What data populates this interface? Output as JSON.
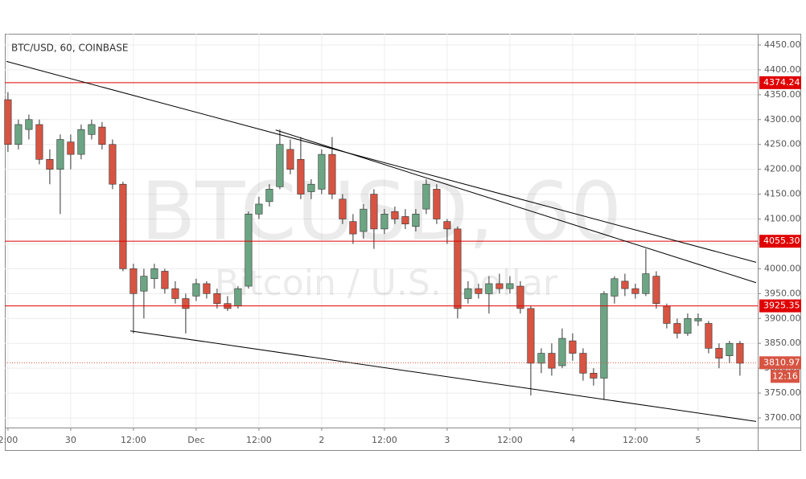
{
  "chart_data": {
    "type": "candlestick",
    "title": "BTC/USD, 60, COINBASE",
    "watermark": "BTCUSD, 60",
    "watermark_subtitle": "Bitcoin / U.S. Dollar",
    "x": [
      0,
      2,
      4,
      6,
      8,
      10,
      12,
      14,
      16,
      18,
      20,
      22,
      24,
      26,
      28,
      30,
      32,
      34,
      36,
      38,
      40,
      42,
      44,
      46,
      48,
      50,
      52,
      54,
      56,
      58,
      60,
      62,
      64,
      66,
      68,
      70,
      72,
      74,
      76,
      78,
      80,
      82,
      84,
      86,
      88,
      90,
      92,
      94,
      96,
      98,
      100,
      102,
      104,
      106,
      108,
      110,
      112,
      114,
      116,
      118,
      120,
      122,
      124,
      126,
      128,
      130,
      132,
      134,
      136,
      138,
      140
    ],
    "open": [
      4340,
      4250,
      4280,
      4290,
      4220,
      4200,
      4255,
      4230,
      4270,
      4285,
      4250,
      4170,
      4000,
      3955,
      3980,
      3995,
      3960,
      3940,
      3945,
      3970,
      3950,
      3930,
      3925,
      3965,
      4110,
      4135,
      4165,
      4240,
      4220,
      4155,
      4160,
      4230,
      4140,
      4095,
      4075,
      4150,
      4080,
      4115,
      4105,
      4085,
      4120,
      4160,
      4095,
      4080,
      3940,
      3960,
      3950,
      3970,
      3960,
      3965,
      3920,
      3810,
      3830,
      3805,
      3855,
      3830,
      3790,
      3780,
      3945,
      3975,
      3960,
      3950,
      3985,
      3925,
      3890,
      3870,
      3895,
      3890,
      3840,
      3825,
      3850
    ],
    "high": [
      4355,
      4300,
      4310,
      4300,
      4240,
      4270,
      4270,
      4290,
      4300,
      4295,
      4260,
      4175,
      4010,
      4000,
      4010,
      4000,
      3975,
      3950,
      3980,
      3975,
      3960,
      3945,
      3965,
      4115,
      4145,
      4170,
      4280,
      4260,
      4265,
      4180,
      4240,
      4265,
      4150,
      4110,
      4130,
      4160,
      4120,
      4125,
      4120,
      4120,
      4180,
      4170,
      4100,
      4085,
      3975,
      3970,
      3985,
      3990,
      3985,
      3975,
      3925,
      3840,
      3850,
      3880,
      3870,
      3840,
      3800,
      3955,
      3985,
      3990,
      3970,
      4040,
      3995,
      3930,
      3900,
      3910,
      3910,
      3895,
      3850,
      3855,
      3855
    ],
    "low": [
      4235,
      4240,
      4260,
      4210,
      4170,
      4110,
      4200,
      4220,
      4260,
      4240,
      4160,
      3995,
      3870,
      3900,
      3960,
      3950,
      3930,
      3870,
      3935,
      3940,
      3920,
      3915,
      3920,
      3960,
      4100,
      4125,
      4160,
      4190,
      4140,
      4140,
      4150,
      4140,
      4090,
      4050,
      4060,
      4040,
      4070,
      4090,
      4080,
      4075,
      4110,
      4090,
      4050,
      3900,
      3930,
      3940,
      3910,
      3950,
      3950,
      3910,
      3745,
      3790,
      3785,
      3800,
      3815,
      3775,
      3765,
      3736,
      3930,
      3945,
      3940,
      3945,
      3920,
      3880,
      3860,
      3865,
      3885,
      3830,
      3800,
      3810,
      3785
    ],
    "close": [
      4250,
      4290,
      4300,
      4220,
      4200,
      4260,
      4230,
      4280,
      4290,
      4250,
      4170,
      4000,
      3950,
      3985,
      4000,
      3960,
      3940,
      3920,
      3970,
      3950,
      3930,
      3920,
      3960,
      4110,
      4130,
      4160,
      4250,
      4200,
      4150,
      4170,
      4230,
      4150,
      4100,
      4070,
      4120,
      4080,
      4110,
      4100,
      4090,
      4110,
      4170,
      4100,
      4080,
      3920,
      3960,
      3950,
      3970,
      3960,
      3970,
      3920,
      3810,
      3830,
      3800,
      3860,
      3830,
      3790,
      3780,
      3950,
      3980,
      3960,
      3950,
      3990,
      3930,
      3890,
      3870,
      3900,
      3900,
      3840,
      3820,
      3850,
      3810
    ],
    "up_color": "#6ba583",
    "down_color": "#d75442",
    "xlim": [
      -0.6,
      143.4
    ],
    "ylim": [
      3680.6,
      4472.6
    ],
    "xticks": [
      {
        "value": 0,
        "label": "2:00"
      },
      {
        "value": 12,
        "label": "30"
      },
      {
        "value": 24,
        "label": "12:00"
      },
      {
        "value": 36,
        "label": "Dec"
      },
      {
        "value": 48,
        "label": "12:00"
      },
      {
        "value": 60,
        "label": "2"
      },
      {
        "value": 72,
        "label": "12:00"
      },
      {
        "value": 84,
        "label": "3"
      },
      {
        "value": 96,
        "label": "12:00"
      },
      {
        "value": 108,
        "label": "4"
      },
      {
        "value": 120,
        "label": "12:00"
      },
      {
        "value": 132,
        "label": "5"
      }
    ],
    "yticks": [
      {
        "value": 3700,
        "label": "3700.00"
      },
      {
        "value": 3750,
        "label": "3750.00"
      },
      {
        "value": 3800,
        "label": "3800.00"
      },
      {
        "value": 3850,
        "label": "3850.00"
      },
      {
        "value": 3900,
        "label": "3900.00"
      },
      {
        "value": 3950,
        "label": "3950.00"
      },
      {
        "value": 4000,
        "label": "4000.00"
      },
      {
        "value": 4050,
        "label": "4050.00"
      },
      {
        "value": 4100,
        "label": "4100.00"
      },
      {
        "value": 4150,
        "label": "4150.00"
      },
      {
        "value": 4200,
        "label": "4200.00"
      },
      {
        "value": 4250,
        "label": "4250.00"
      },
      {
        "value": 4300,
        "label": "4300.00"
      },
      {
        "value": 4350,
        "label": "4350.00"
      },
      {
        "value": 4400,
        "label": "4400.00"
      },
      {
        "value": 4450,
        "label": "4450.00"
      }
    ],
    "grid": true,
    "levels": [
      4374.24,
      {
        "value": 4055.3,
        "label": "4055.30"
      },
      3925.35
    ],
    "level_color": "#e00000",
    "last_price": 3810.97,
    "countdown": "12:16",
    "trend_color": "#000000",
    "trend_lines": [
      {
        "points": [
          [
            -0.3,
            4417
          ],
          [
            143.1,
            4013
          ]
        ]
      },
      {
        "points": [
          [
            51.2,
            4279
          ],
          [
            143.1,
            3972
          ]
        ]
      },
      {
        "points": [
          [
            23.4,
            3875
          ],
          [
            143.1,
            3693
          ]
        ]
      }
    ]
  }
}
